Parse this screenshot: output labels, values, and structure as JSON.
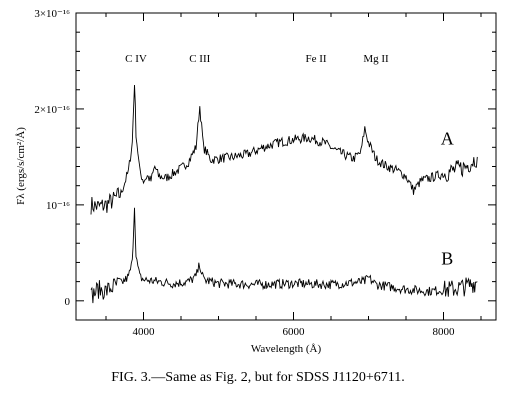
{
  "chart_data": {
    "type": "line",
    "xlabel": "Wavelength (Å)",
    "ylabel": "Fλ (ergs/s/cm²/Å)",
    "xlim": [
      3100,
      8700
    ],
    "ylim": [
      -0.2,
      3.0
    ],
    "x_ticks": [
      4000,
      6000,
      8000
    ],
    "x_tick_labels": [
      "4000",
      "6000",
      "8000"
    ],
    "y_ticks": [
      0,
      1,
      2,
      3
    ],
    "y_tick_labels": [
      "0",
      "10⁻¹⁶",
      "2×10⁻¹⁶",
      "3×10⁻¹⁶"
    ],
    "line_labels": [
      {
        "text": "C IV",
        "x": 3900
      },
      {
        "text": "C III",
        "x": 4750
      },
      {
        "text": "Fe II",
        "x": 6300
      },
      {
        "text": "Mg II",
        "x": 7100
      }
    ],
    "series": [
      {
        "name": "A",
        "color": "#000000",
        "points": [
          [
            3300,
            1.0
          ],
          [
            3400,
            0.98
          ],
          [
            3500,
            1.0
          ],
          [
            3600,
            1.05
          ],
          [
            3700,
            1.12
          ],
          [
            3800,
            1.35
          ],
          [
            3850,
            1.65
          ],
          [
            3880,
            2.28
          ],
          [
            3900,
            1.75
          ],
          [
            3950,
            1.35
          ],
          [
            4000,
            1.25
          ],
          [
            4050,
            1.3
          ],
          [
            4100,
            1.25
          ],
          [
            4150,
            1.4
          ],
          [
            4200,
            1.3
          ],
          [
            4300,
            1.28
          ],
          [
            4400,
            1.33
          ],
          [
            4500,
            1.38
          ],
          [
            4600,
            1.45
          ],
          [
            4700,
            1.6
          ],
          [
            4750,
            2.03
          ],
          [
            4800,
            1.6
          ],
          [
            4900,
            1.47
          ],
          [
            5000,
            1.48
          ],
          [
            5200,
            1.5
          ],
          [
            5400,
            1.53
          ],
          [
            5600,
            1.6
          ],
          [
            5800,
            1.65
          ],
          [
            6000,
            1.68
          ],
          [
            6200,
            1.7
          ],
          [
            6400,
            1.65
          ],
          [
            6600,
            1.55
          ],
          [
            6800,
            1.48
          ],
          [
            6900,
            1.55
          ],
          [
            6950,
            1.8
          ],
          [
            7000,
            1.65
          ],
          [
            7100,
            1.48
          ],
          [
            7200,
            1.42
          ],
          [
            7400,
            1.35
          ],
          [
            7500,
            1.3
          ],
          [
            7600,
            1.15
          ],
          [
            7700,
            1.25
          ],
          [
            7900,
            1.3
          ],
          [
            8100,
            1.35
          ],
          [
            8300,
            1.4
          ],
          [
            8450,
            1.5
          ]
        ]
      },
      {
        "name": "B",
        "color": "#000000",
        "points": [
          [
            3300,
            0.05
          ],
          [
            3400,
            0.12
          ],
          [
            3500,
            0.1
          ],
          [
            3600,
            0.15
          ],
          [
            3700,
            0.18
          ],
          [
            3800,
            0.25
          ],
          [
            3850,
            0.4
          ],
          [
            3880,
            1.0
          ],
          [
            3900,
            0.45
          ],
          [
            3950,
            0.25
          ],
          [
            4000,
            0.22
          ],
          [
            4200,
            0.2
          ],
          [
            4400,
            0.18
          ],
          [
            4600,
            0.2
          ],
          [
            4700,
            0.25
          ],
          [
            4750,
            0.38
          ],
          [
            4800,
            0.22
          ],
          [
            5000,
            0.18
          ],
          [
            5500,
            0.17
          ],
          [
            6000,
            0.18
          ],
          [
            6500,
            0.17
          ],
          [
            6950,
            0.2
          ],
          [
            7000,
            0.24
          ],
          [
            7100,
            0.17
          ],
          [
            7500,
            0.12
          ],
          [
            7800,
            0.1
          ],
          [
            8100,
            0.12
          ],
          [
            8300,
            0.15
          ],
          [
            8450,
            0.2
          ]
        ]
      }
    ]
  },
  "caption": "FIG. 3.—Same as Fig. 2, but for SDSS J1120+6711."
}
